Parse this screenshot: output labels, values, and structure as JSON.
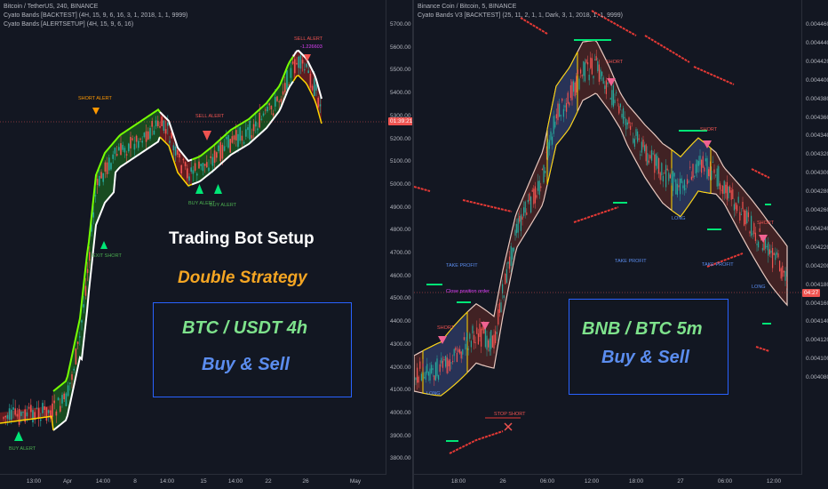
{
  "left": {
    "legend": {
      "symbol": "Bitcoin / TetherUS, 240, BINANCE",
      "indicator1": "Cyato Bands [BACKTEST] (4H, 15, 9, 6, 16, 3, 1, 2018, 1, 1, 9999)",
      "indicator2": "Cyato Bands [ALERTSETUP] (4H, 15, 9, 6, 16)"
    },
    "overlay_title": "Trading Bot Setup",
    "overlay_subtitle": "Double Strategy",
    "box_line1": "BTC / USDT 4h",
    "box_line2": "Buy & Sell",
    "price_ticks": [
      "5700.00",
      "5600.00",
      "5500.00",
      "5400.00",
      "5300.00",
      "5200.00",
      "5100.00",
      "5000.00",
      "4900.00",
      "4800.00",
      "4700.00",
      "4600.00",
      "4500.00",
      "4400.00",
      "4300.00",
      "4200.00",
      "4100.00",
      "4000.00",
      "3900.00",
      "3800.00"
    ],
    "current_price": "01:39:21",
    "time_ticks": [
      "13:00",
      "Apr",
      "14:00",
      "8",
      "14:00",
      "15",
      "14:00",
      "22",
      "26",
      "May"
    ],
    "signals": {
      "sell_alert_top": "SELL ALERT",
      "sell_alert_top_val": "-1.226603",
      "short_alert": "SHORT ALERT",
      "sell_alert_mid": "SELL ALERT",
      "buy_alert_1": "BUY ALERT",
      "buy_alert_2": "BUY ALERT",
      "buy_alert_bottom": "BUY ALERT",
      "exit_short": "EXIT SHORT"
    },
    "colors": {
      "bull_band": "#1b5e20",
      "bear_band": "#5d1a1a",
      "bull_line": "#76ff03",
      "bear_line": "#ef5350",
      "white_line": "#ffffff",
      "yellow_line": "#ffd600"
    }
  },
  "right": {
    "legend": {
      "symbol": "Binance Coin / Bitcoin, 5, BINANCE",
      "indicator1": "Cyato Bands V3 [BACKTEST] (25, 11, 2, 1, 1, Dark, 3, 1, 2018, 1, 1, 9999)"
    },
    "box_line1": "BNB / BTC 5m",
    "box_line2": "Buy & Sell",
    "price_ticks": [
      "0.0044600",
      "0.0044400",
      "0.0044200",
      "0.0044000",
      "0.0043800",
      "0.0043600",
      "0.0043400",
      "0.0043200",
      "0.0043000",
      "0.0042800",
      "0.0042600",
      "0.0042400",
      "0.0042200",
      "0.0042000",
      "0.0041800",
      "0.0041600",
      "0.0041400",
      "0.0041200",
      "0.0041000",
      "0.0040800"
    ],
    "current_price": "04:27",
    "time_ticks": [
      "18:00",
      "26",
      "06:00",
      "12:00",
      "18:00",
      "27",
      "06:00",
      "12:00"
    ],
    "signals": {
      "take_profit_1": "TAKE PROFIT",
      "take_profit_2": "TAKE PROFIT",
      "take_profit_3": "TAKE PROFIT",
      "short_1": "SHORT",
      "short_2": "SHORT",
      "short_3": "SHORT",
      "short_4": "SHORT",
      "long_1": "LONG",
      "long_2": "LONG",
      "long_3": "LONG",
      "stop_short": "STOP SHORT",
      "close_order": "Close position order"
    },
    "colors": {
      "band_fill": "#4a2525",
      "band_outline": "#e8c9c0",
      "upper_line": "#ffd600",
      "trail_red": "#e53935",
      "trail_green": "#00e676"
    }
  }
}
